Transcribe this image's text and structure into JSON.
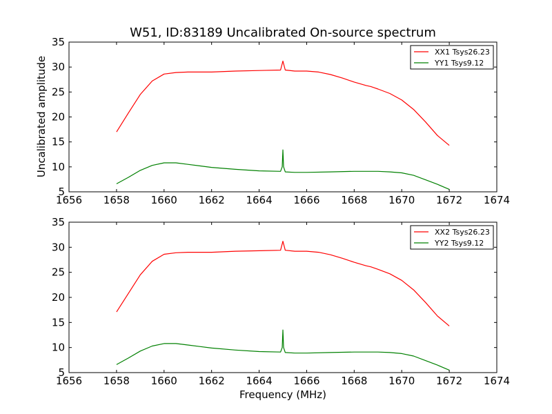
{
  "chart_data": [
    {
      "type": "line",
      "title": "W51, ID:83189 Uncalibrated On-source spectrum",
      "xlabel": "",
      "ylabel": "Uncalibrated amplitude",
      "xlim": [
        1656,
        1674
      ],
      "ylim": [
        5,
        35
      ],
      "xticks": [
        "1656",
        "1658",
        "1660",
        "1662",
        "1664",
        "1666",
        "1668",
        "1670",
        "1672",
        "1674"
      ],
      "yticks": [
        "5",
        "10",
        "15",
        "20",
        "25",
        "30",
        "35"
      ],
      "grid": false,
      "legend": "top-right",
      "series": [
        {
          "name": "XX1 Tsys26.23",
          "color": "#ff0000",
          "x": [
            1658.0,
            1658.5,
            1659.0,
            1659.5,
            1660.0,
            1660.5,
            1661.0,
            1661.5,
            1662.0,
            1663.0,
            1664.0,
            1664.9,
            1665.0,
            1665.1,
            1665.5,
            1666.0,
            1666.5,
            1667.0,
            1667.5,
            1668.0,
            1668.5,
            1668.7,
            1669.0,
            1669.5,
            1670.0,
            1670.5,
            1671.0,
            1671.5,
            1672.0
          ],
          "values": [
            17.0,
            20.8,
            24.5,
            27.2,
            28.6,
            28.9,
            29.0,
            29.0,
            29.0,
            29.2,
            29.3,
            29.4,
            31.2,
            29.4,
            29.2,
            29.2,
            29.0,
            28.5,
            27.8,
            27.0,
            26.3,
            26.1,
            25.6,
            24.7,
            23.4,
            21.5,
            19.0,
            16.3,
            14.3
          ]
        },
        {
          "name": "YY1 Tsys9.12",
          "color": "#008000",
          "x": [
            1658.0,
            1658.5,
            1659.0,
            1659.5,
            1660.0,
            1660.5,
            1661.0,
            1661.5,
            1662.0,
            1663.0,
            1664.0,
            1664.9,
            1664.97,
            1665.0,
            1665.03,
            1665.1,
            1665.5,
            1666.0,
            1667.0,
            1668.0,
            1668.7,
            1669.0,
            1669.5,
            1670.0,
            1670.5,
            1671.0,
            1671.5,
            1672.0
          ],
          "values": [
            6.6,
            7.9,
            9.3,
            10.3,
            10.8,
            10.8,
            10.5,
            10.2,
            9.9,
            9.5,
            9.2,
            9.1,
            10.0,
            13.4,
            10.0,
            9.0,
            8.9,
            8.9,
            9.0,
            9.1,
            9.1,
            9.1,
            9.0,
            8.8,
            8.3,
            7.4,
            6.5,
            5.5
          ]
        }
      ]
    },
    {
      "type": "line",
      "title": "",
      "xlabel": "Frequency (MHz)",
      "ylabel": "",
      "xlim": [
        1656,
        1674
      ],
      "ylim": [
        5,
        35
      ],
      "xticks": [
        "1656",
        "1658",
        "1660",
        "1662",
        "1664",
        "1666",
        "1668",
        "1670",
        "1672",
        "1674"
      ],
      "yticks": [
        "5",
        "10",
        "15",
        "20",
        "25",
        "30",
        "35"
      ],
      "grid": false,
      "legend": "top-right",
      "series": [
        {
          "name": "XX2 Tsys26.23",
          "color": "#ff0000",
          "x": [
            1658.0,
            1658.5,
            1659.0,
            1659.5,
            1660.0,
            1660.5,
            1661.0,
            1661.5,
            1662.0,
            1663.0,
            1664.0,
            1664.9,
            1665.0,
            1665.1,
            1665.5,
            1666.0,
            1666.5,
            1667.0,
            1667.5,
            1668.0,
            1668.5,
            1668.7,
            1669.0,
            1669.5,
            1670.0,
            1670.5,
            1671.0,
            1671.5,
            1672.0
          ],
          "values": [
            17.1,
            20.8,
            24.5,
            27.2,
            28.6,
            28.9,
            29.0,
            29.0,
            29.0,
            29.2,
            29.3,
            29.4,
            31.2,
            29.4,
            29.2,
            29.2,
            29.0,
            28.5,
            27.8,
            27.0,
            26.3,
            26.1,
            25.6,
            24.7,
            23.4,
            21.5,
            19.0,
            16.3,
            14.3
          ]
        },
        {
          "name": "YY2 Tsys9.12",
          "color": "#008000",
          "x": [
            1658.0,
            1658.5,
            1659.0,
            1659.5,
            1660.0,
            1660.5,
            1661.0,
            1661.5,
            1662.0,
            1663.0,
            1664.0,
            1664.9,
            1664.97,
            1665.0,
            1665.03,
            1665.1,
            1665.5,
            1666.0,
            1667.0,
            1668.0,
            1668.7,
            1669.0,
            1669.5,
            1670.0,
            1670.5,
            1671.0,
            1671.5,
            1672.0
          ],
          "values": [
            6.6,
            7.9,
            9.3,
            10.3,
            10.8,
            10.8,
            10.5,
            10.2,
            9.9,
            9.5,
            9.2,
            9.1,
            10.0,
            13.5,
            10.0,
            9.0,
            8.9,
            8.9,
            9.0,
            9.1,
            9.1,
            9.1,
            9.0,
            8.8,
            8.3,
            7.4,
            6.5,
            5.5
          ]
        }
      ]
    }
  ]
}
